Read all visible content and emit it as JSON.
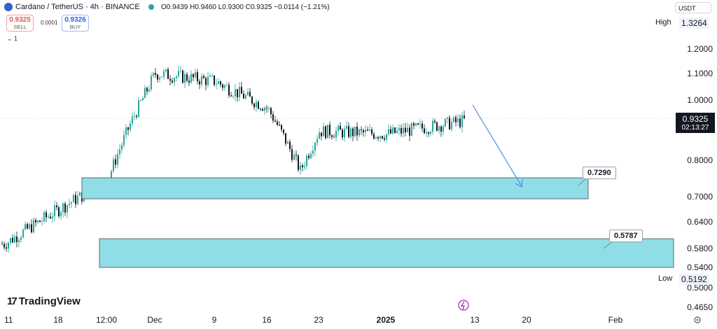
{
  "header": {
    "title": "Cardano / TetherUS · 4h · BINANCE",
    "ohlc": "O0.9439 H0.9460 L0.9300 C0.9325",
    "change": "−0.0114 (−1.21%)"
  },
  "trade": {
    "sell_price": "0.9325",
    "sell_label": "SELL",
    "spread": "0.0001",
    "buy_price": "0.9326",
    "buy_label": "BUY"
  },
  "indicators_count": "1",
  "currency": "USDT",
  "high": {
    "label": "High",
    "value": "1.3264"
  },
  "low": {
    "label": "Low",
    "value": "0.5192"
  },
  "current": {
    "price": "0.9325",
    "countdown": "02:13:27"
  },
  "branding": "TradingView",
  "levels": [
    {
      "label": "0.7290"
    },
    {
      "label": "0.5787"
    }
  ],
  "colors": {
    "up": "#26a69a",
    "down": "#131722",
    "zone_fill": "#8fdde6",
    "arrow": "#4a90e2",
    "event": "#9c27b0"
  },
  "chart_data": {
    "type": "candlestick",
    "title": "Cardano / TetherUS · 4h · BINANCE",
    "y_ticks": [
      1.2,
      1.1,
      1.0,
      0.8,
      0.7,
      0.64,
      0.58,
      0.54,
      0.5,
      0.465
    ],
    "x_ticks": [
      "11",
      "18",
      "12:00",
      "Dec",
      "9",
      "16",
      "23",
      "2025",
      "13",
      "20",
      "Feb"
    ],
    "ylim": [
      0.44,
      1.37
    ],
    "price_path": [
      [
        "11",
        0.59
      ],
      [
        "12:00",
        0.74
      ],
      [
        "Dec",
        1.1
      ],
      [
        "9",
        1.07
      ],
      [
        "16",
        0.97
      ],
      [
        "19",
        0.77
      ],
      [
        "23",
        0.89
      ],
      [
        "2025",
        0.88
      ],
      [
        "13",
        0.93
      ]
    ],
    "current_price": 0.9325,
    "high": 1.3264,
    "low": 0.5192,
    "zones": [
      {
        "from": 0.695,
        "to": 0.752,
        "label": 0.729
      },
      {
        "from": 0.548,
        "to": 0.6,
        "label": 0.5787
      }
    ],
    "projection": "down arrow toward 0.7290 zone"
  }
}
